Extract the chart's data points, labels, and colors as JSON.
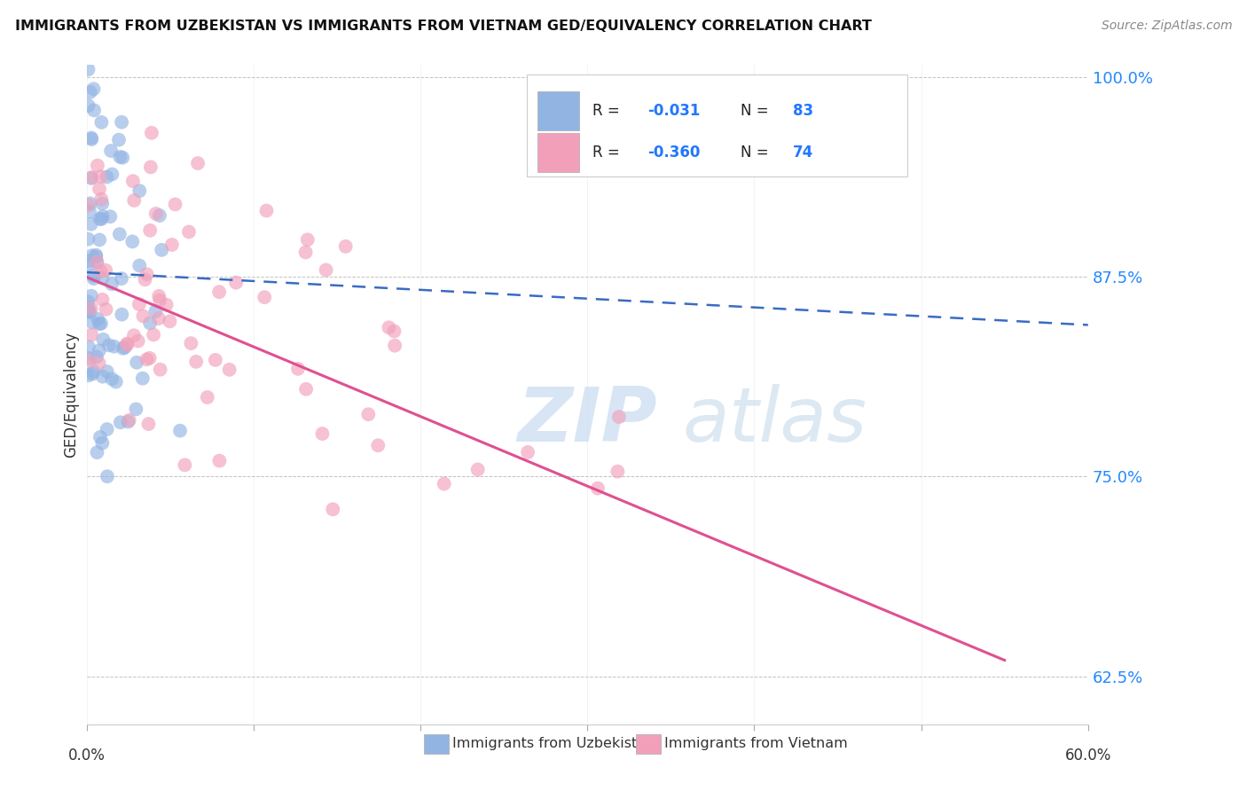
{
  "title": "IMMIGRANTS FROM UZBEKISTAN VS IMMIGRANTS FROM VIETNAM GED/EQUIVALENCY CORRELATION CHART",
  "source": "Source: ZipAtlas.com",
  "ylabel": "GED/Equivalency",
  "xmin": 0.0,
  "xmax": 0.6,
  "ymin": 0.595,
  "ymax": 1.008,
  "yticks": [
    0.625,
    0.75,
    0.875,
    1.0
  ],
  "ytick_labels": [
    "62.5%",
    "75.0%",
    "87.5%",
    "100.0%"
  ],
  "color_uzbekistan": "#92B4E3",
  "color_vietnam": "#F2A0BA",
  "color_uzbekistan_line": "#3A6BC4",
  "color_vietnam_line": "#E05090",
  "watermark_zip": "ZIP",
  "watermark_atlas": "atlas",
  "uz_line_x0": 0.0,
  "uz_line_x1": 0.6,
  "uz_line_y0": 0.878,
  "uz_line_y1": 0.845,
  "vn_line_x0": 0.0,
  "vn_line_x1": 0.55,
  "vn_line_y0": 0.875,
  "vn_line_y1": 0.635
}
